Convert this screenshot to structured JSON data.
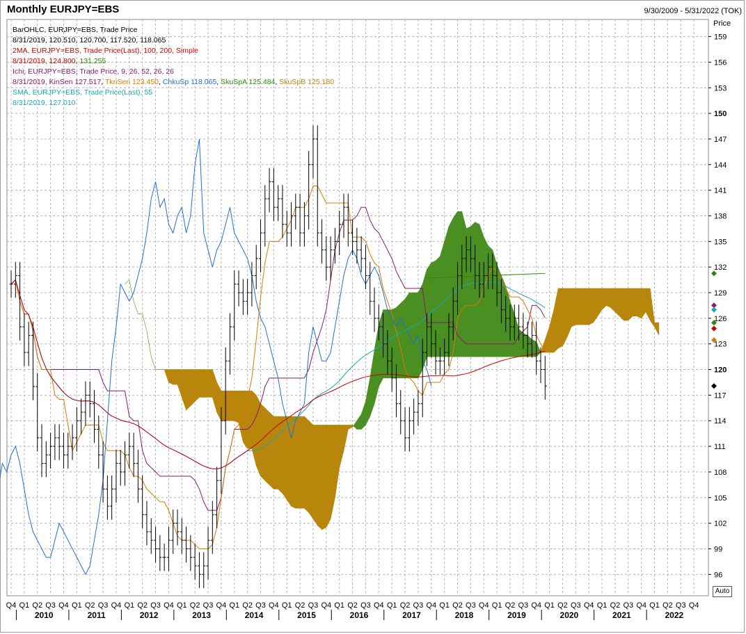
{
  "header": {
    "title": "Monthly EURJPY=EBS",
    "date_range": "9/30/2009 - 5/31/2022 (TOK)",
    "price_axis_label": "Price",
    "auto_button": "Auto"
  },
  "legend": {
    "ohlc_name": "BarOHLC, EURJPY=EBS, Trade Price",
    "ohlc_values": "8/31/2019, 120.510, 120.700, 117.520, 118.065",
    "ma_name": "2MA, EURJPY=EBS, Trade Price(Last),  100, 200, Simple",
    "ma_values_date": "8/31/2019, ",
    "ma_value_1": "124.800",
    "ma_value_2": "131.255",
    "ichi_name": "Ichi, EURJPY=EBS, Trade Price,  9, 26, 52, 26, 26",
    "ichi_date": "8/31/2019, ",
    "ichi_kinsen": "KinSen 127.517",
    "ichi_tknsen": "TknSen 123.450",
    "ichi_chkusp": "ChkuSp 118.065",
    "ichi_skuspa": "SkuSpA 125.484",
    "ichi_skuspb": "SkuSpB 125.180",
    "sma_name": "SMA, EURJPY=EBS, Trade Price(Last),  55",
    "sma_values": "8/31/2019, 127.010"
  },
  "colors": {
    "bars": "#000000",
    "ma100": "#cc0000",
    "ma200": "#2e8b00",
    "kinsen": "#8b1a6b",
    "tknsen": "#e07800",
    "chkusp": "#1f6fd0",
    "skuspa": "#2e8b00",
    "skuspb": "#b8860b",
    "sma": "#1aa7b8",
    "cloud_bull": "#4a8f22",
    "cloud_bear": "#b8860b",
    "grid": "#b4b4b4"
  },
  "chart_data": {
    "type": "ohlc",
    "title": "Monthly EURJPY=EBS",
    "ylabel": "Price",
    "ylim": [
      93.5,
      161
    ],
    "y_ticks": [
      96,
      99,
      102,
      105,
      108,
      111,
      114,
      117,
      120,
      123,
      126,
      129,
      132,
      135,
      138,
      141,
      144,
      147,
      150,
      153,
      156,
      159
    ],
    "y_ticks_bold": [
      120,
      150
    ],
    "x_quarter_labels": [
      "Q4",
      "Q1",
      "Q2",
      "Q3",
      "Q4",
      "Q1",
      "Q2",
      "Q3",
      "Q4",
      "Q1",
      "Q2",
      "Q3",
      "Q4",
      "Q1",
      "Q2",
      "Q3",
      "Q4",
      "Q1",
      "Q2",
      "Q3",
      "Q4",
      "Q1",
      "Q2",
      "Q3",
      "Q4",
      "Q1",
      "Q2",
      "Q3",
      "Q4",
      "Q1",
      "Q2",
      "Q3",
      "Q4",
      "Q1",
      "Q2",
      "Q3",
      "Q4",
      "Q1",
      "Q2",
      "Q3",
      "Q4",
      "Q1",
      "Q2",
      "Q3",
      "Q4",
      "Q1",
      "Q2",
      "Q3",
      "Q4",
      "Q1",
      "Q2",
      "Q3",
      "Q4"
    ],
    "x_year_labels": [
      "2010",
      "2011",
      "2012",
      "2013",
      "2014",
      "2015",
      "2016",
      "2017",
      "2018",
      "2019",
      "2020",
      "2021",
      "2022"
    ],
    "x_range": [
      "2009-Q4",
      "2022-Q2"
    ],
    "ohlc_monthly_close": [
      130,
      131,
      125,
      122,
      124,
      118,
      112,
      109,
      110,
      111,
      112,
      111,
      110,
      111,
      112,
      114,
      115,
      117,
      116,
      113,
      110,
      106,
      104,
      106,
      109,
      108,
      110,
      111,
      109,
      106,
      103,
      101,
      100,
      99,
      98,
      98,
      100,
      102,
      101,
      100,
      99,
      98,
      97,
      96,
      97,
      100,
      103,
      107,
      114,
      121,
      125,
      130,
      129,
      128,
      129,
      131,
      133,
      136,
      140,
      142,
      139,
      140,
      137,
      136,
      138,
      139,
      136,
      138,
      144,
      147,
      136,
      134,
      132,
      134,
      135,
      137,
      139,
      136,
      135,
      134,
      133,
      131,
      128,
      126,
      125,
      123,
      121,
      119,
      116,
      114,
      112,
      114,
      115,
      116,
      122,
      125,
      123,
      121,
      121,
      122,
      125,
      128,
      131,
      133,
      134,
      133,
      131,
      130,
      131,
      132,
      131,
      129,
      127,
      126,
      125,
      126,
      125,
      124,
      123,
      124,
      121,
      120,
      118.065
    ],
    "kinsen_level": 127.517,
    "tknsen_level": 123.45,
    "chkusp_level": 118.065,
    "skuspa_level": 125.484,
    "skuspb_level": 125.18,
    "sma55_last": 127.01,
    "ma100_last": 124.8,
    "ma200_last": 131.255
  }
}
